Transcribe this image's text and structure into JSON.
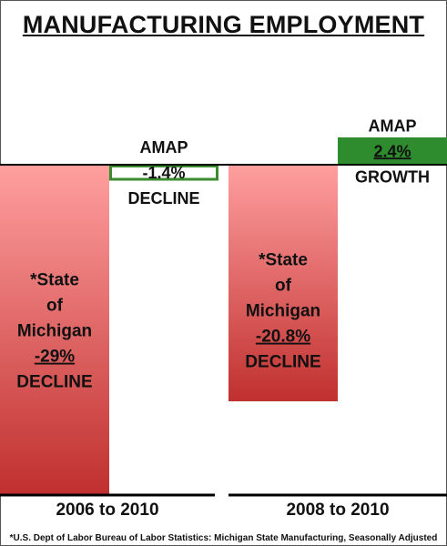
{
  "title": "MANUFACTURING EMPLOYMENT",
  "footnote": "*U.S. Dept of Labor Bureau of Labor Statistics: Michigan State Manufacturing, Seasonally Adjusted",
  "colors": {
    "michigan_top": "#ff9f9f",
    "michigan_bottom": "#c0302f",
    "amap_border": "#3a8a2e",
    "amap_fill": "#2e8b2e",
    "axis": "#000000"
  },
  "chart_data": {
    "type": "bar",
    "title": "MANUFACTURING EMPLOYMENT",
    "categories": [
      "2006 to 2010",
      "2008 to 2010"
    ],
    "series": [
      {
        "name": "*State of Michigan",
        "values": [
          -29,
          -20.8
        ]
      },
      {
        "name": "AMAP",
        "values": [
          -1.4,
          2.4
        ]
      }
    ],
    "bar_labels": [
      [
        "*State",
        "of",
        "Michigan",
        "-29%",
        "DECLINE"
      ],
      [
        "AMAP",
        "-1.4%",
        "DECLINE"
      ],
      [
        "*State",
        "of",
        "Michigan",
        "-20.8%",
        "DECLINE"
      ],
      [
        "AMAP",
        "2.4%",
        "GROWTH"
      ]
    ],
    "underlined_lines": [
      "-29%",
      "-20.8%",
      "2.4%"
    ],
    "ylim": [
      -30,
      9
    ],
    "baseline": 0
  }
}
